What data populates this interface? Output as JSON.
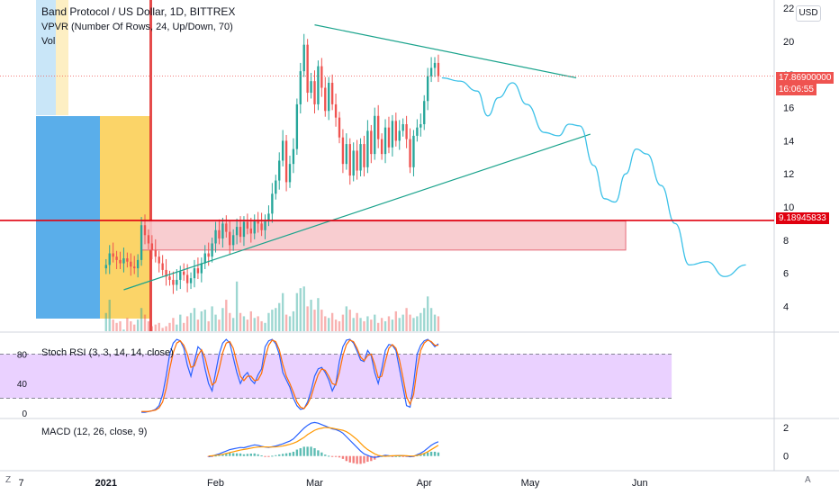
{
  "header": {
    "symbol_line": "Band Protocol / US Dollar, 1D, BITTREX",
    "vpvr_line": "VPVR (Number Of Rows, 24, Up/Down, 70)",
    "vol_line": "Vol"
  },
  "currency_button": "USD",
  "price_tags": {
    "last_price": "17.86900000",
    "countdown": "16:06:55",
    "hline_price": "9.18945833"
  },
  "corner_left": "Z",
  "corner_right": "A",
  "colors": {
    "up": "#26a69a",
    "down": "#ef5350",
    "trendline": "#1aa38c",
    "projection": "#3cc1e8",
    "hline": "#e0000f",
    "zone_fill": "#f8c8cc",
    "stoch_band": "#e6c9ff",
    "stoch_k": "#2962ff",
    "stoch_d": "#ff6d00",
    "macd": "#2962ff",
    "signal": "#ff9800",
    "vpvr_up": "#5aaeea",
    "vpvr_down": "#fbd468"
  },
  "chart_data": [
    {
      "type": "candlestick",
      "title": "Band Protocol / US Dollar, 1D, BITTREX",
      "ylim": [
        2.5,
        22.5
      ],
      "y_ticks": [
        4,
        6,
        8,
        10,
        12,
        14,
        16,
        18,
        20,
        22
      ],
      "x_ticks": [
        "7",
        "2021",
        "Feb",
        "Mar",
        "Apr",
        "May",
        "Jun"
      ],
      "x_range_days": [
        -30,
        189
      ],
      "series": [
        {
          "name": "price",
          "points": [
            [
              0,
              6.5
            ],
            [
              1,
              7.2
            ],
            [
              2,
              7.0
            ],
            [
              3,
              6.8
            ],
            [
              4,
              6.6
            ],
            [
              5,
              6.9
            ],
            [
              6,
              6.7
            ],
            [
              7,
              6.4
            ],
            [
              8,
              6.3
            ],
            [
              9,
              6.8
            ],
            [
              10,
              8.9
            ],
            [
              11,
              8.3
            ],
            [
              12,
              7.8
            ],
            [
              13,
              7.4
            ],
            [
              14,
              7.0
            ],
            [
              15,
              6.6
            ],
            [
              16,
              6.2
            ],
            [
              17,
              5.8
            ],
            [
              18,
              5.6
            ],
            [
              19,
              5.3
            ],
            [
              20,
              5.6
            ],
            [
              21,
              6.1
            ],
            [
              22,
              5.9
            ],
            [
              23,
              5.4
            ],
            [
              24,
              5.7
            ],
            [
              25,
              6.3
            ],
            [
              26,
              6.0
            ],
            [
              27,
              6.6
            ],
            [
              28,
              7.2
            ],
            [
              29,
              7.0
            ],
            [
              30,
              7.8
            ],
            [
              31,
              8.6
            ],
            [
              32,
              8.1
            ],
            [
              33,
              9.0
            ],
            [
              34,
              8.5
            ],
            [
              35,
              7.7
            ],
            [
              36,
              8.3
            ],
            [
              37,
              8.8
            ],
            [
              38,
              8.2
            ],
            [
              39,
              9.1
            ],
            [
              40,
              8.7
            ],
            [
              41,
              8.4
            ],
            [
              42,
              9.2
            ],
            [
              43,
              9.0
            ],
            [
              44,
              8.6
            ],
            [
              45,
              9.2
            ],
            [
              46,
              9.6
            ],
            [
              47,
              10.8
            ],
            [
              48,
              11.6
            ],
            [
              49,
              12.8
            ],
            [
              50,
              14.0
            ],
            [
              51,
              11.5
            ],
            [
              52,
              12.6
            ],
            [
              53,
              13.5
            ],
            [
              54,
              16.2
            ],
            [
              55,
              18.2
            ],
            [
              56,
              19.8
            ],
            [
              57,
              16.9
            ],
            [
              58,
              17.6
            ],
            [
              59,
              16.2
            ],
            [
              60,
              18.5
            ],
            [
              61,
              17.2
            ],
            [
              62,
              15.8
            ],
            [
              63,
              17.5
            ],
            [
              64,
              16.2
            ],
            [
              65,
              15.4
            ],
            [
              66,
              14.2
            ],
            [
              67,
              12.6
            ],
            [
              68,
              13.8
            ],
            [
              69,
              11.9
            ],
            [
              70,
              13.4
            ],
            [
              71,
              12.2
            ],
            [
              72,
              13.8
            ],
            [
              73,
              12.4
            ],
            [
              74,
              14.6
            ],
            [
              75,
              13.2
            ],
            [
              76,
              15.5
            ],
            [
              77,
              14.1
            ],
            [
              78,
              13.2
            ],
            [
              79,
              14.8
            ],
            [
              80,
              13.6
            ],
            [
              81,
              15.2
            ],
            [
              82,
              14.0
            ],
            [
              83,
              14.6
            ],
            [
              84,
              15.0
            ],
            [
              85,
              14.1
            ],
            [
              86,
              12.4
            ],
            [
              87,
              14.3
            ],
            [
              88,
              14.8
            ],
            [
              89,
              15.0
            ],
            [
              90,
              16.4
            ],
            [
              91,
              17.9
            ],
            [
              92,
              18.4
            ],
            [
              93,
              18.7
            ],
            [
              94,
              17.9
            ]
          ]
        },
        {
          "name": "Vol",
          "values": [
            3.6,
            4.4,
            3.2,
            3.0,
            3.1,
            2.6,
            3.3,
            3.1,
            2.9,
            3.2,
            3.9,
            3.5,
            3.1,
            2.8,
            2.9,
            3.0,
            2.7,
            2.8,
            3.0,
            3.3,
            2.9,
            3.5,
            3.0,
            3.4,
            3.6,
            3.9,
            3.2,
            3.7,
            3.8,
            3.1,
            4.0,
            3.5,
            3.2,
            3.9,
            4.4,
            3.6,
            3.3,
            5.5,
            3.6,
            3.4,
            3.2,
            3.7,
            3.3,
            3.4,
            3.1,
            3.0,
            3.6,
            3.8,
            3.9,
            4.2,
            4.8,
            3.5,
            3.4,
            3.7,
            4.8,
            5.1,
            5.2,
            4.0,
            4.4,
            3.8,
            4.5,
            3.8,
            3.4,
            3.3,
            3.6,
            3.2,
            3.1,
            3.5,
            4.0,
            3.8,
            3.3,
            3.6,
            3.3,
            3.1,
            3.4,
            3.2,
            3.5,
            3.0,
            3.3,
            3.1,
            3.4,
            3.2,
            3.7,
            3.3,
            3.5,
            3.9,
            3.5,
            3.3,
            3.4,
            3.6,
            3.9,
            4.6,
            3.9,
            3.5,
            3.4
          ]
        }
      ],
      "horizontal_line": 9.18945833,
      "zone": {
        "x": [
          10,
          147
        ],
        "y": [
          7.4,
          9.15
        ]
      },
      "trendlines": [
        {
          "x": [
            59,
            133
          ],
          "y": [
            21.0,
            17.8
          ]
        },
        {
          "x": [
            5,
            137
          ],
          "y": [
            5.0,
            14.4
          ]
        }
      ],
      "projection": {
        "x": [
          95,
          100,
          105,
          108,
          111,
          115,
          119,
          124,
          128,
          131,
          134,
          138,
          141,
          144,
          147,
          150,
          153,
          157,
          161,
          165,
          170,
          175,
          181
        ],
        "y": [
          17.8,
          17.6,
          17.0,
          15.5,
          16.6,
          17.5,
          16.2,
          14.5,
          14.3,
          15.0,
          14.9,
          12.5,
          10.5,
          10.3,
          12.0,
          13.5,
          13.2,
          11.3,
          9.0,
          6.5,
          6.7,
          5.8,
          6.5
        ]
      },
      "vpvr": {
        "up_width": 71,
        "down_width": 56
      }
    },
    {
      "type": "line",
      "title": "Stoch RSI (3, 3, 14, 14, close)",
      "ylim": [
        -5,
        105
      ],
      "y_ticks": [
        0,
        40,
        80
      ],
      "band": [
        20,
        80
      ],
      "series": [
        {
          "name": "K",
          "values": [
            1,
            1,
            2,
            3,
            5,
            10,
            25,
            50,
            80,
            95,
            100,
            98,
            88,
            65,
            50,
            70,
            90,
            85,
            60,
            40,
            30,
            55,
            80,
            95,
            100,
            95,
            75,
            55,
            40,
            50,
            55,
            45,
            40,
            52,
            60,
            90,
            98,
            100,
            94,
            80,
            55,
            45,
            35,
            20,
            10,
            5,
            6,
            15,
            30,
            50,
            60,
            62,
            55,
            45,
            30,
            40,
            70,
            90,
            99,
            100,
            95,
            84,
            72,
            70,
            85,
            78,
            55,
            40,
            60,
            85,
            93,
            92,
            85,
            60,
            35,
            10,
            8,
            40,
            80,
            92,
            98,
            100,
            96,
            90,
            94
          ]
        },
        {
          "name": "D",
          "values": [
            2,
            2,
            2,
            3,
            4,
            7,
            15,
            33,
            60,
            82,
            95,
            98,
            92,
            80,
            62,
            64,
            78,
            86,
            75,
            55,
            38,
            42,
            60,
            82,
            95,
            97,
            88,
            68,
            50,
            44,
            50,
            50,
            44,
            45,
            54,
            75,
            92,
            99,
            97,
            86,
            66,
            50,
            40,
            28,
            15,
            8,
            6,
            12,
            22,
            38,
            52,
            60,
            58,
            50,
            40,
            38,
            55,
            78,
            93,
            99,
            97,
            88,
            76,
            71,
            78,
            80,
            66,
            48,
            50,
            70,
            88,
            93,
            88,
            72,
            48,
            22,
            12,
            25,
            60,
            85,
            95,
            99,
            97,
            92,
            92
          ]
        }
      ]
    },
    {
      "type": "bar+line",
      "title": "MACD (12, 26, close, 9)",
      "ylim": [
        -0.9,
        2.5
      ],
      "y_ticks": [
        0,
        2
      ],
      "series": [
        {
          "name": "MACD",
          "values": [
            -0.05,
            0.0,
            0.08,
            0.15,
            0.25,
            0.35,
            0.45,
            0.5,
            0.55,
            0.6,
            0.58,
            0.65,
            0.72,
            0.78,
            0.75,
            0.68,
            0.63,
            0.6,
            0.65,
            0.7,
            0.78,
            0.85,
            0.95,
            1.05,
            1.2,
            1.45,
            1.7,
            1.95,
            2.15,
            2.3,
            2.35,
            2.3,
            2.2,
            2.1,
            2.0,
            1.9,
            1.85,
            1.75,
            1.6,
            1.35,
            1.1,
            0.85,
            0.6,
            0.35,
            0.15,
            0.05,
            -0.05,
            -0.1,
            -0.05,
            0.0,
            0.05,
            0.02,
            0.0,
            0.02,
            0.03,
            0.02,
            0.0,
            -0.05,
            -0.02,
            0.1,
            0.2,
            0.35,
            0.55,
            0.75,
            0.9,
            1.0
          ]
        },
        {
          "name": "Signal",
          "values": [
            0.0,
            0.02,
            0.05,
            0.08,
            0.12,
            0.18,
            0.24,
            0.3,
            0.36,
            0.42,
            0.46,
            0.5,
            0.55,
            0.6,
            0.63,
            0.64,
            0.64,
            0.63,
            0.63,
            0.64,
            0.67,
            0.7,
            0.76,
            0.82,
            0.9,
            1.0,
            1.15,
            1.3,
            1.5,
            1.65,
            1.8,
            1.9,
            1.95,
            2.0,
            1.98,
            1.95,
            1.9,
            1.85,
            1.8,
            1.7,
            1.55,
            1.35,
            1.15,
            0.9,
            0.65,
            0.45,
            0.3,
            0.15,
            0.05,
            0.0,
            -0.02,
            0.0,
            0.02,
            0.02,
            0.03,
            0.03,
            0.02,
            0.0,
            0.0,
            0.05,
            0.1,
            0.18,
            0.3,
            0.45,
            0.6,
            0.75
          ]
        }
      ]
    }
  ]
}
